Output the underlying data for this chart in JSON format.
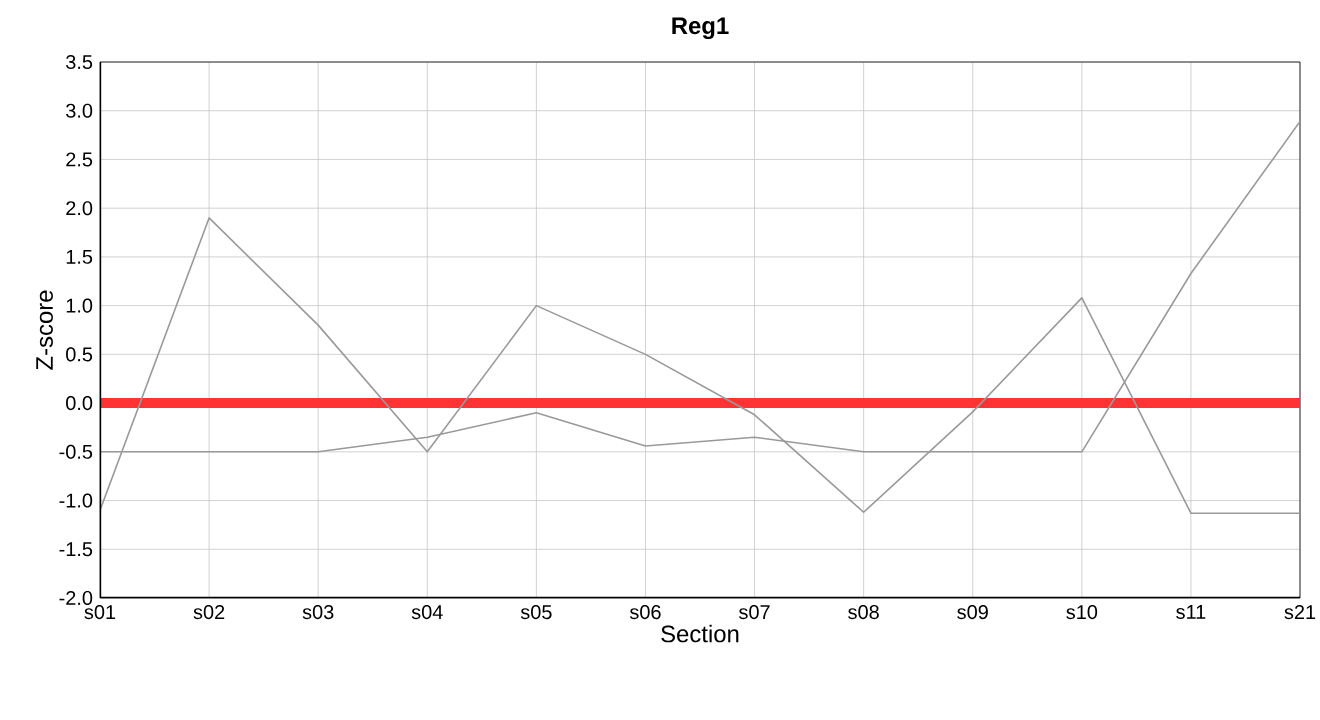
{
  "chart_data": {
    "type": "line",
    "title": "Reg1",
    "xlabel": "Section",
    "ylabel": "Z-score",
    "categories": [
      "s01",
      "s02",
      "s03",
      "s04",
      "s05",
      "s06",
      "s07",
      "s08",
      "s09",
      "s10",
      "s11",
      "s21"
    ],
    "series": [
      {
        "color": "#999999",
        "values": [
          -1.1,
          1.9,
          0.8,
          -0.5,
          1.0,
          0.5,
          -0.12,
          -1.12,
          -0.09,
          1.08,
          -1.13,
          -1.13
        ]
      },
      {
        "color": "#999999",
        "values": [
          -0.5,
          -0.5,
          -0.5,
          -0.35,
          -0.1,
          -0.44,
          -0.35,
          -0.5,
          -0.5,
          -0.5,
          1.33,
          2.89
        ]
      }
    ],
    "ylim": [
      -2.0,
      3.5
    ],
    "yticks": [
      {
        "value": -2.0,
        "label": "-2.0"
      },
      {
        "value": -1.5,
        "label": "-1.5"
      },
      {
        "value": -1.0,
        "label": "-1.0"
      },
      {
        "value": -0.5,
        "label": "-0.5"
      },
      {
        "value": 0,
        "label": "0.0"
      },
      {
        "value": 0.5,
        "label": "0.5"
      },
      {
        "value": 1.0,
        "label": "1.0"
      },
      {
        "value": 1.5,
        "label": "1.5"
      },
      {
        "value": 2.0,
        "label": "2.0"
      },
      {
        "value": 2.5,
        "label": "2.5"
      },
      {
        "value": 3.0,
        "label": "3.0"
      },
      {
        "value": 3.5,
        "label": "3.5"
      }
    ],
    "ref_lines": [
      {
        "axis": "y",
        "value": 0,
        "color": "#ff3333"
      }
    ],
    "grid": true,
    "marker": "none",
    "line_style": "solid"
  }
}
